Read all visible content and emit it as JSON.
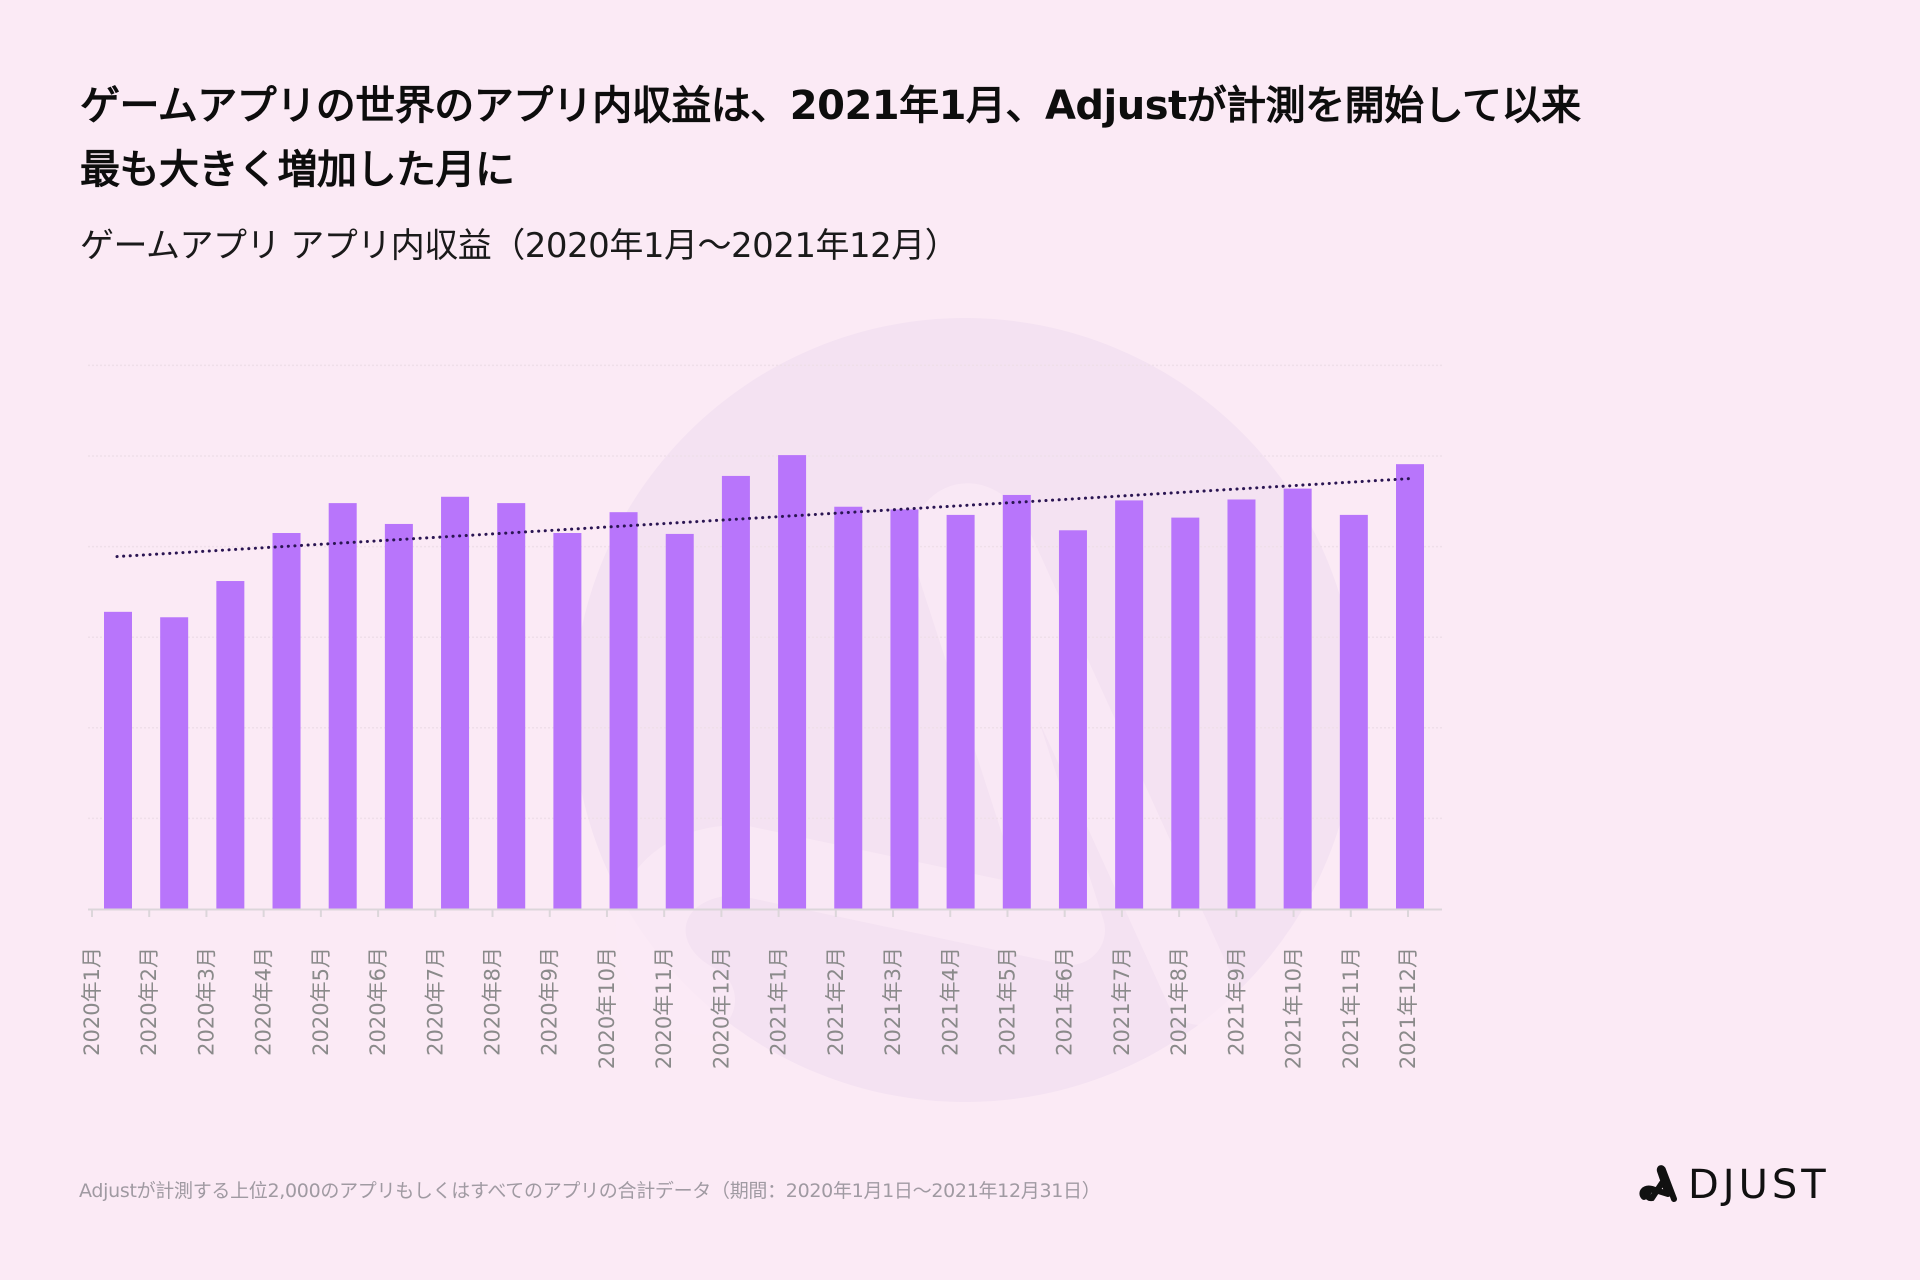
{
  "header": {
    "title_lines": [
      "ゲームアプリの世界のアプリ内収益は、2021年1月、Adjustが計測を開始して以来",
      "最も大きく増加した月に"
    ],
    "subtitle": "ゲームアプリ アプリ内収益（2020年1月〜2021年12月）"
  },
  "footer": {
    "note": "Adjustが計測する上位2,000のアプリもしくはすべてのアプリの合計データ（期間：2020年1月1日〜2021年12月31日）",
    "logo_text": "DJUST",
    "logo_icon": "adjust-a-logo-icon"
  },
  "colors": {
    "background": "#fbeaf5",
    "bar": "#b875fb",
    "trendline": "#2a1552",
    "gridline": "#efdfe9",
    "axis": "#dcd6da",
    "tick_label": "#8a8a8a",
    "watermark": "#f4e2f2"
  },
  "chart_data": {
    "type": "bar",
    "title": "ゲームアプリ アプリ内収益（2020年1月〜2021年12月）",
    "xlabel": "",
    "ylabel": "",
    "y_tick_labels_shown": false,
    "y_units": "relative (gridline intervals, no labeled scale)",
    "ylim": [
      0,
      6
    ],
    "gridlines": [
      1,
      2,
      3,
      4,
      5,
      6
    ],
    "grid": true,
    "legend": "none",
    "categories": [
      "2020年1月",
      "2020年2月",
      "2020年3月",
      "2020年4月",
      "2020年5月",
      "2020年6月",
      "2020年7月",
      "2020年8月",
      "2020年9月",
      "2020年10月",
      "2020年11月",
      "2020年12月",
      "2021年1月",
      "2021年2月",
      "2021年3月",
      "2021年4月",
      "2021年5月",
      "2021年6月",
      "2021年7月",
      "2021年8月",
      "2021年9月",
      "2021年10月",
      "2021年11月",
      "2021年12月"
    ],
    "series": [
      {
        "name": "アプリ内収益",
        "type": "bar",
        "values": [
          3.28,
          3.22,
          3.62,
          4.15,
          4.48,
          4.25,
          4.55,
          4.48,
          4.15,
          4.38,
          4.14,
          4.78,
          5.01,
          4.44,
          4.41,
          4.35,
          4.57,
          4.18,
          4.51,
          4.32,
          4.52,
          4.64,
          4.35,
          4.91
        ]
      },
      {
        "name": "トレンドライン",
        "type": "line",
        "style": "dotted",
        "linear_trend": {
          "start": 3.89,
          "end": 4.75
        }
      }
    ]
  }
}
